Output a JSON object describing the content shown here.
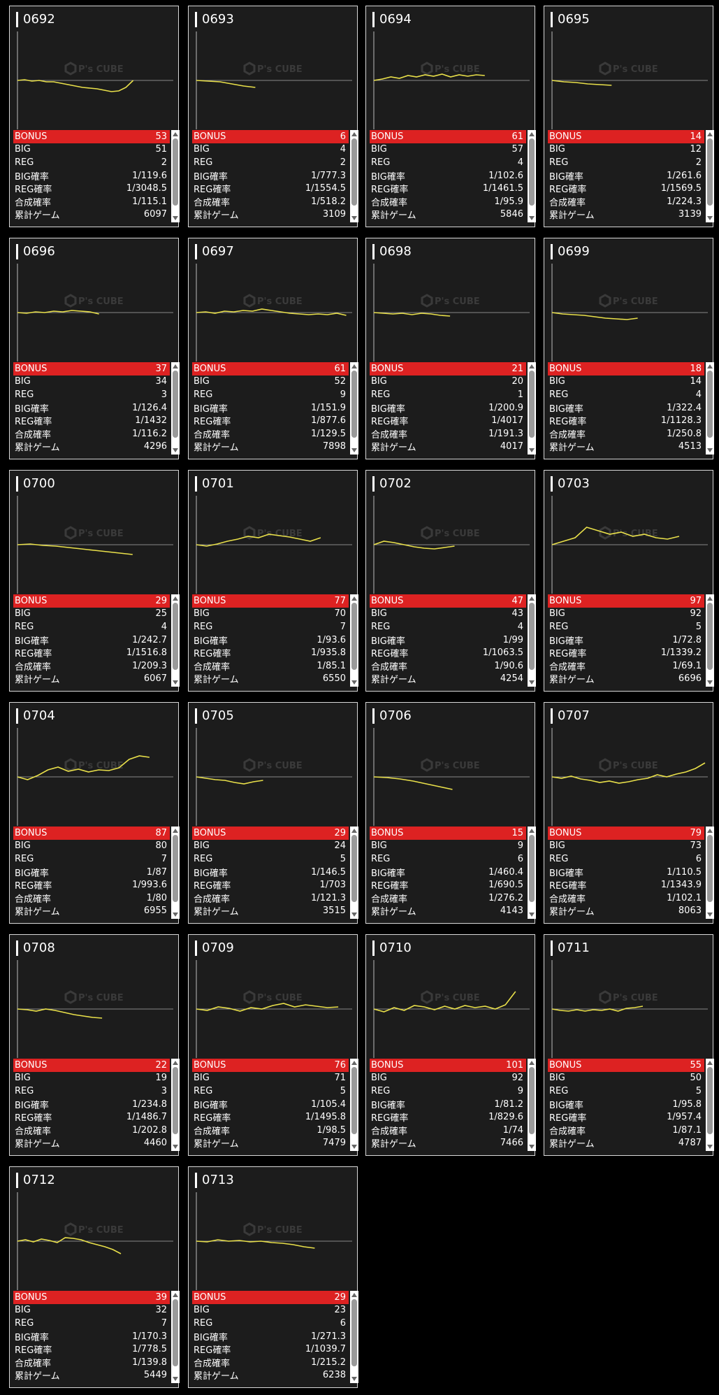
{
  "watermark": {
    "brand": "P's CUBE"
  },
  "labels": [
    "BONUS",
    "BIG",
    "REG",
    "BIG確率",
    "REG確率",
    "合成確率",
    "累計ゲーム"
  ],
  "colors": {
    "bonus_bar": "#dd2222",
    "graph_line": "#e9e04a",
    "baseline": "#888888"
  },
  "machines": [
    {
      "id": "0692",
      "values": [
        "53",
        "51",
        "2",
        "1/119.6",
        "1/3048.5",
        "1/115.1",
        "6097"
      ],
      "trend": [
        0,
        1,
        -1,
        0,
        -2,
        -2,
        -4,
        -6,
        -8,
        -10,
        -11,
        -12,
        -14,
        -16,
        -15,
        -10,
        0
      ]
    },
    {
      "id": "0693",
      "values": [
        "6",
        "4",
        "2",
        "1/777.3",
        "1/1554.5",
        "1/518.2",
        "3109"
      ],
      "trend": [
        0,
        -1,
        -2,
        -5,
        -8,
        -10
      ]
    },
    {
      "id": "0694",
      "values": [
        "61",
        "57",
        "4",
        "1/102.6",
        "1/1461.5",
        "1/95.9",
        "5846"
      ],
      "trend": [
        0,
        2,
        5,
        3,
        7,
        5,
        8,
        6,
        9,
        5,
        8,
        6,
        8,
        7
      ]
    },
    {
      "id": "0695",
      "values": [
        "14",
        "12",
        "2",
        "1/261.6",
        "1/1569.5",
        "1/224.3",
        "3139"
      ],
      "trend": [
        0,
        -2,
        -3,
        -5,
        -6,
        -7
      ]
    },
    {
      "id": "0696",
      "values": [
        "37",
        "34",
        "3",
        "1/126.4",
        "1/1432",
        "1/116.2",
        "4296"
      ],
      "trend": [
        0,
        -1,
        1,
        0,
        2,
        1,
        3,
        2,
        1,
        -2
      ]
    },
    {
      "id": "0697",
      "values": [
        "61",
        "52",
        "9",
        "1/151.9",
        "1/877.6",
        "1/129.5",
        "7898"
      ],
      "trend": [
        0,
        1,
        -1,
        2,
        1,
        3,
        2,
        5,
        3,
        1,
        -1,
        -2,
        -3,
        -2,
        -3,
        -1,
        -4
      ]
    },
    {
      "id": "0698",
      "values": [
        "21",
        "20",
        "1",
        "1/200.9",
        "1/4017",
        "1/191.3",
        "4017"
      ],
      "trend": [
        0,
        -1,
        -2,
        -1,
        -3,
        -1,
        -2,
        -4,
        -5
      ]
    },
    {
      "id": "0699",
      "values": [
        "18",
        "14",
        "4",
        "1/322.4",
        "1/1128.3",
        "1/250.8",
        "4513"
      ],
      "trend": [
        0,
        -2,
        -3,
        -4,
        -6,
        -8,
        -9,
        -10,
        -8
      ]
    },
    {
      "id": "0700",
      "values": [
        "29",
        "25",
        "4",
        "1/242.7",
        "1/1516.8",
        "1/209.3",
        "6067"
      ],
      "trend": [
        0,
        1,
        -1,
        -2,
        -4,
        -6,
        -8,
        -10,
        -12,
        -14
      ]
    },
    {
      "id": "0701",
      "values": [
        "77",
        "70",
        "7",
        "1/93.6",
        "1/935.8",
        "1/85.1",
        "6550"
      ],
      "trend": [
        0,
        -2,
        1,
        5,
        8,
        12,
        10,
        15,
        13,
        11,
        8,
        5,
        10
      ]
    },
    {
      "id": "0702",
      "values": [
        "47",
        "43",
        "4",
        "1/99",
        "1/1063.5",
        "1/90.6",
        "4254"
      ],
      "trend": [
        0,
        5,
        3,
        0,
        -3,
        -5,
        -6,
        -4,
        -2
      ]
    },
    {
      "id": "0703",
      "values": [
        "97",
        "92",
        "5",
        "1/72.8",
        "1/1339.2",
        "1/69.1",
        "6696"
      ],
      "trend": [
        0,
        5,
        10,
        25,
        20,
        15,
        18,
        12,
        15,
        10,
        8,
        12
      ]
    },
    {
      "id": "0704",
      "values": [
        "87",
        "80",
        "7",
        "1/87",
        "1/993.6",
        "1/80",
        "6955"
      ],
      "trend": [
        0,
        -4,
        2,
        10,
        14,
        8,
        11,
        7,
        10,
        9,
        13,
        25,
        30,
        28
      ]
    },
    {
      "id": "0705",
      "values": [
        "29",
        "24",
        "5",
        "1/146.5",
        "1/703",
        "1/121.3",
        "3515"
      ],
      "trend": [
        0,
        -2,
        -4,
        -5,
        -8,
        -10,
        -7,
        -5
      ]
    },
    {
      "id": "0706",
      "values": [
        "15",
        "9",
        "6",
        "1/460.4",
        "1/690.5",
        "1/276.2",
        "4143"
      ],
      "trend": [
        0,
        -1,
        -3,
        -6,
        -10,
        -14,
        -18
      ]
    },
    {
      "id": "0707",
      "values": [
        "79",
        "73",
        "6",
        "1/110.5",
        "1/1343.9",
        "1/102.1",
        "8063"
      ],
      "trend": [
        0,
        -2,
        1,
        -3,
        -5,
        -8,
        -6,
        -9,
        -7,
        -4,
        -2,
        3,
        0,
        4,
        7,
        12,
        20
      ]
    },
    {
      "id": "0708",
      "values": [
        "22",
        "19",
        "3",
        "1/234.8",
        "1/1486.7",
        "1/202.8",
        "4460"
      ],
      "trend": [
        0,
        -1,
        -3,
        0,
        -2,
        -5,
        -8,
        -10,
        -12,
        -13
      ]
    },
    {
      "id": "0709",
      "values": [
        "76",
        "71",
        "5",
        "1/105.4",
        "1/1495.8",
        "1/98.5",
        "7479"
      ],
      "trend": [
        0,
        -2,
        3,
        1,
        -3,
        2,
        0,
        5,
        8,
        3,
        6,
        4,
        2,
        3
      ]
    },
    {
      "id": "0710",
      "values": [
        "101",
        "92",
        "9",
        "1/81.2",
        "1/829.6",
        "1/74",
        "7466"
      ],
      "trend": [
        0,
        -4,
        2,
        -2,
        5,
        3,
        -1,
        4,
        0,
        5,
        2,
        4,
        0,
        6,
        25
      ]
    },
    {
      "id": "0711",
      "values": [
        "55",
        "50",
        "5",
        "1/95.8",
        "1/957.4",
        "1/87.1",
        "4787"
      ],
      "trend": [
        0,
        -2,
        -3,
        -1,
        -3,
        -1,
        -2,
        0,
        -3,
        1,
        2,
        4
      ]
    },
    {
      "id": "0712",
      "values": [
        "39",
        "32",
        "7",
        "1/170.3",
        "1/778.5",
        "1/139.8",
        "5449"
      ],
      "trend": [
        0,
        2,
        -1,
        3,
        1,
        -2,
        5,
        4,
        2,
        -2,
        -5,
        -8,
        -12,
        -18
      ]
    },
    {
      "id": "0713",
      "values": [
        "29",
        "23",
        "6",
        "1/271.3",
        "1/1039.7",
        "1/215.2",
        "6238"
      ],
      "trend": [
        0,
        -1,
        2,
        0,
        1,
        -1,
        0,
        -2,
        -3,
        -5,
        -8,
        -10
      ]
    }
  ]
}
